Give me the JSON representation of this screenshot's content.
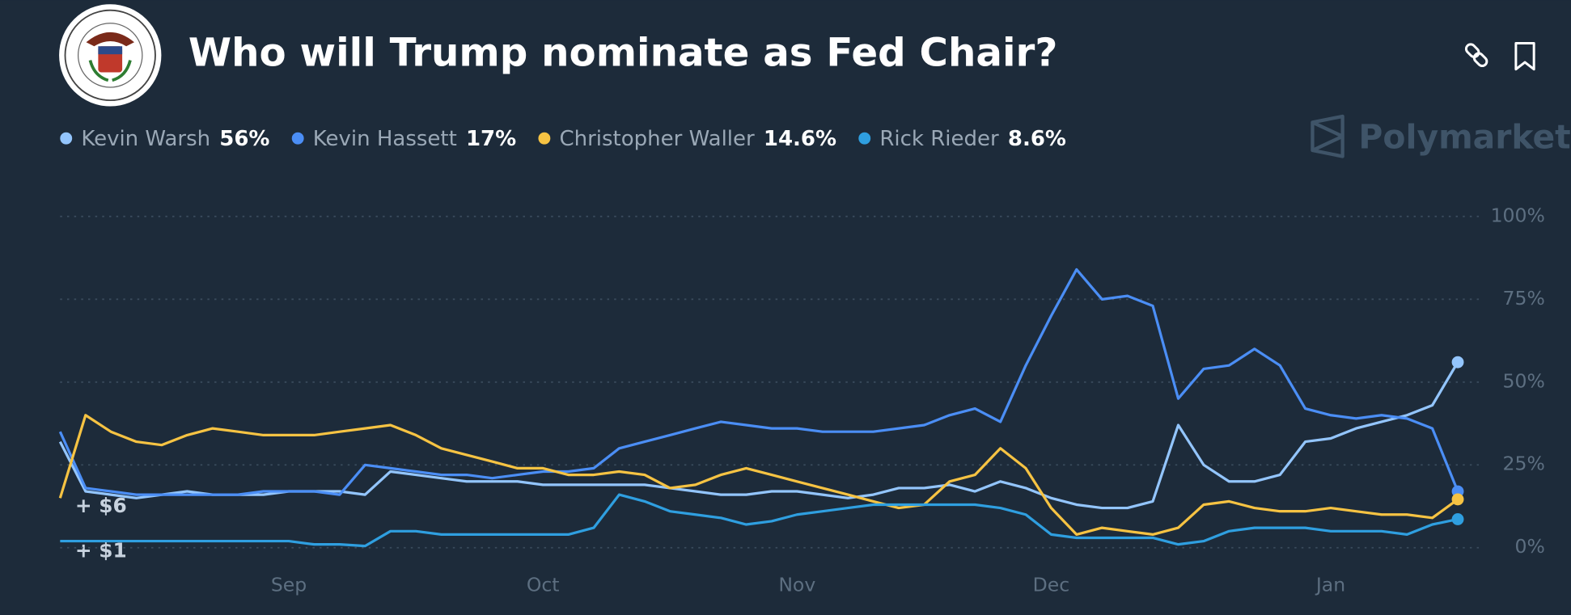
{
  "chart_data": {
    "type": "line",
    "title": "Who will Trump nominate as Fed Chair?",
    "brand": "Polymarket",
    "annotations": [
      "+ $6",
      "+ $1"
    ],
    "categories": [
      null,
      null,
      null,
      null,
      null,
      null,
      null,
      null,
      null,
      "Sep",
      null,
      null,
      null,
      null,
      null,
      null,
      null,
      null,
      null,
      "Oct",
      null,
      null,
      null,
      null,
      null,
      null,
      null,
      null,
      null,
      "Nov",
      null,
      null,
      null,
      null,
      null,
      null,
      null,
      null,
      null,
      "Dec",
      null,
      null,
      null,
      null,
      null,
      null,
      null,
      null,
      null,
      null,
      "Jan",
      null,
      null,
      null,
      null,
      null
    ],
    "series": [
      {
        "name": "Kevin Warsh",
        "color": "#93c5fd",
        "values": [
          32,
          17,
          16,
          15,
          16,
          17,
          16,
          16,
          16,
          17,
          17,
          17,
          16,
          23,
          22,
          21,
          20,
          20,
          20,
          19,
          19,
          19,
          19,
          19,
          18,
          17,
          16,
          16,
          17,
          17,
          16,
          15,
          16,
          18,
          18,
          19,
          17,
          20,
          18,
          15,
          13,
          12,
          12,
          14,
          37,
          25,
          20,
          20,
          22,
          32,
          33,
          36,
          38,
          40,
          43,
          56
        ],
        "value_labels": [
          null,
          null,
          null,
          null,
          null,
          null,
          null,
          null,
          null,
          null,
          null,
          null,
          null,
          null,
          null,
          null,
          null,
          null,
          null,
          null,
          null,
          null,
          null,
          null,
          null,
          null,
          null,
          null,
          null,
          null,
          null,
          null,
          null,
          null,
          null,
          null,
          null,
          null,
          null,
          null,
          null,
          null,
          null,
          null,
          null,
          null,
          null,
          null,
          null,
          null,
          null,
          null,
          null,
          null,
          null,
          "56%"
        ]
      },
      {
        "name": "Kevin Hassett",
        "color": "#4b8ef5",
        "values": [
          35,
          18,
          17,
          16,
          16,
          16,
          16,
          16,
          17,
          17,
          17,
          16,
          25,
          24,
          23,
          22,
          22,
          21,
          22,
          23,
          23,
          24,
          30,
          32,
          34,
          36,
          38,
          37,
          36,
          36,
          35,
          35,
          35,
          36,
          37,
          40,
          42,
          38,
          55,
          70,
          84,
          75,
          76,
          73,
          45,
          54,
          55,
          60,
          55,
          42,
          40,
          39,
          40,
          39,
          36,
          17
        ],
        "value_labels": [
          null,
          null,
          null,
          null,
          null,
          null,
          null,
          null,
          null,
          null,
          null,
          null,
          null,
          null,
          null,
          null,
          null,
          null,
          null,
          null,
          null,
          null,
          null,
          null,
          null,
          null,
          null,
          null,
          null,
          null,
          null,
          null,
          null,
          null,
          null,
          null,
          null,
          null,
          null,
          null,
          null,
          null,
          null,
          null,
          null,
          null,
          null,
          null,
          null,
          null,
          null,
          null,
          null,
          null,
          null,
          "17%"
        ]
      },
      {
        "name": "Christopher Waller",
        "color": "#f6c343",
        "values": [
          15,
          40,
          35,
          32,
          31,
          34,
          36,
          35,
          34,
          34,
          34,
          35,
          36,
          37,
          34,
          30,
          28,
          26,
          24,
          24,
          22,
          22,
          23,
          22,
          18,
          19,
          22,
          24,
          22,
          20,
          18,
          16,
          14,
          12,
          13,
          20,
          22,
          30,
          24,
          12,
          4,
          6,
          5,
          4,
          6,
          13,
          14,
          12,
          11,
          11,
          12,
          11,
          10,
          10,
          9,
          14.6
        ],
        "value_labels": [
          null,
          null,
          null,
          null,
          null,
          null,
          null,
          null,
          null,
          null,
          null,
          null,
          null,
          null,
          null,
          null,
          null,
          null,
          null,
          null,
          null,
          null,
          null,
          null,
          null,
          null,
          null,
          null,
          null,
          null,
          null,
          null,
          null,
          null,
          null,
          null,
          null,
          null,
          null,
          null,
          null,
          null,
          null,
          null,
          null,
          null,
          null,
          null,
          null,
          null,
          null,
          null,
          null,
          null,
          null,
          "14.6%"
        ]
      },
      {
        "name": "Rick Rieder",
        "color": "#2f9fe0",
        "values": [
          2,
          2,
          2,
          2,
          2,
          2,
          2,
          2,
          2,
          2,
          1,
          1,
          0.5,
          5,
          5,
          4,
          4,
          4,
          4,
          4,
          4,
          6,
          16,
          14,
          11,
          10,
          9,
          7,
          8,
          10,
          11,
          12,
          13,
          13,
          13,
          13,
          13,
          12,
          10,
          4,
          3,
          3,
          3,
          3,
          1,
          2,
          5,
          6,
          6,
          6,
          5,
          5,
          5,
          4,
          7,
          8.6
        ],
        "value_labels": [
          null,
          null,
          null,
          null,
          null,
          null,
          null,
          null,
          null,
          null,
          null,
          null,
          null,
          null,
          null,
          null,
          null,
          null,
          null,
          null,
          null,
          null,
          null,
          null,
          null,
          null,
          null,
          null,
          null,
          null,
          null,
          null,
          null,
          null,
          null,
          null,
          null,
          null,
          null,
          null,
          null,
          null,
          null,
          null,
          null,
          null,
          null,
          null,
          null,
          null,
          null,
          null,
          null,
          null,
          null,
          "8.6%"
        ]
      }
    ],
    "ylim": [
      0,
      100
    ],
    "yticks": [
      {
        "value": 0,
        "label": "0%"
      },
      {
        "value": 25,
        "label": "25%"
      },
      {
        "value": 50,
        "label": "50%"
      },
      {
        "value": 75,
        "label": "75%"
      },
      {
        "value": 100,
        "label": "100%"
      }
    ],
    "grid": true
  }
}
